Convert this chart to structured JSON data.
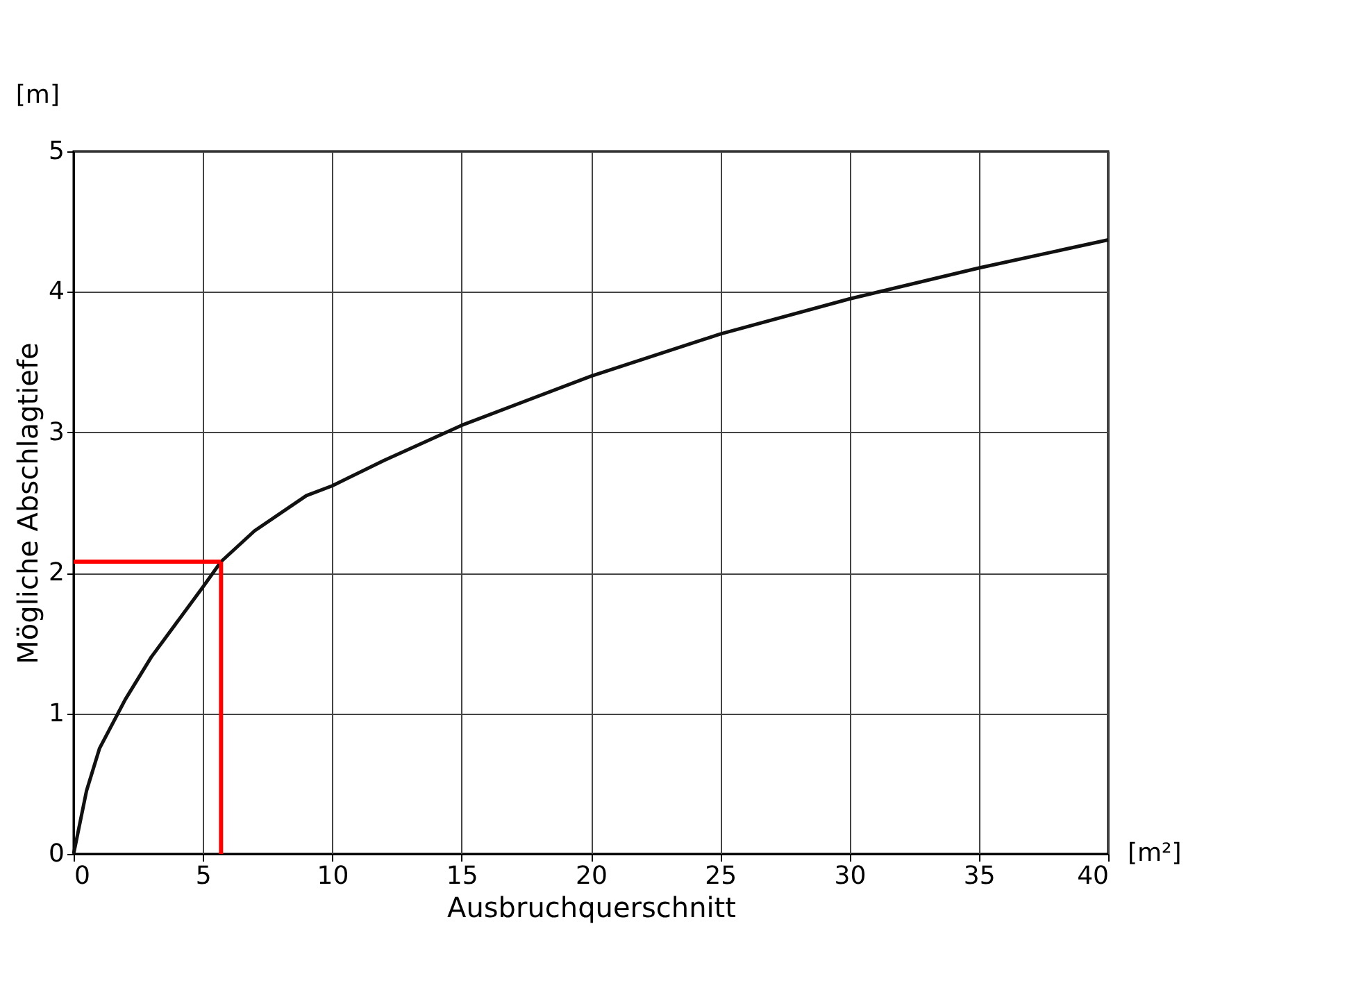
{
  "chart_data": {
    "type": "line",
    "xlabel": "Ausbruchquerschnitt",
    "ylabel": "Mögliche Abschlagtiefe",
    "annotations": [
      "[m]",
      "[m²]"
    ],
    "x": [
      0,
      0.5,
      1,
      2,
      3,
      4,
      5,
      5.7,
      7,
      9,
      10,
      12,
      15,
      20,
      25,
      30,
      35,
      40
    ],
    "series": [
      {
        "color": "#111111",
        "values": [
          0,
          0.45,
          0.75,
          1.1,
          1.4,
          1.65,
          1.9,
          2.08,
          2.3,
          2.55,
          2.62,
          2.8,
          3.05,
          3.4,
          3.7,
          3.95,
          4.17,
          4.37
        ]
      }
    ],
    "xlim": [
      0,
      40
    ],
    "ylim": [
      0,
      5
    ],
    "xticks": [
      0,
      5,
      10,
      15,
      20,
      25,
      30,
      35,
      40
    ],
    "yticks": [
      0,
      1,
      2,
      3,
      4,
      5
    ],
    "ref_lines": [
      {
        "axis": "x",
        "value": 5.7,
        "color": "#ff0000"
      },
      {
        "axis": "y",
        "value": 2.08,
        "color": "#ff0000"
      }
    ],
    "grid": true,
    "marker": "none",
    "line_style": "solid"
  }
}
